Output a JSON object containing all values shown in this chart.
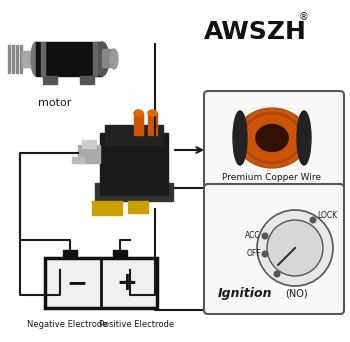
{
  "bg_color": "#ffffff",
  "line_color": "#1a1a1a",
  "text_color": "#1a1a1a",
  "motor_label": "motor",
  "battery_neg_label": "Negative Electrode",
  "battery_pos_label": "Positive Electrode",
  "copper_wire_label": "Premium Copper Wire",
  "ignition_label": "Ignition",
  "ignition_no_label": "(NO)",
  "lock_label": "LOCK",
  "acc_label": "ACC",
  "off_label": "OFF",
  "awszh_title": "AWSZH",
  "awszh_reg": "®"
}
